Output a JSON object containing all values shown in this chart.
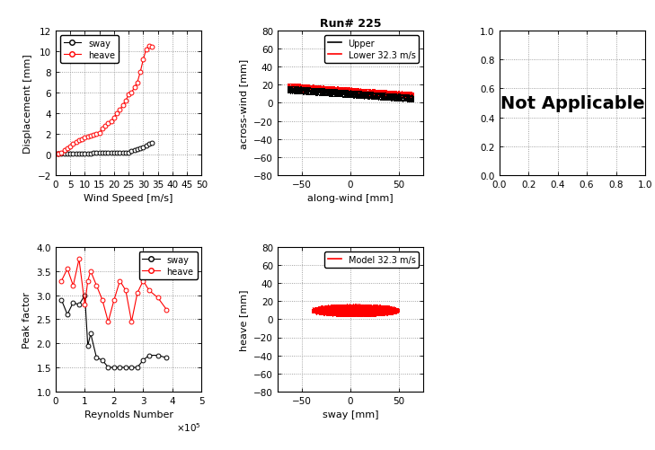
{
  "title": "Run# 225",
  "top_left": {
    "xlabel": "Wind Speed [m/s]",
    "ylabel": "Displacement [mm]",
    "xlim": [
      0,
      50
    ],
    "ylim": [
      -2,
      12
    ],
    "xticks": [
      0,
      5,
      10,
      15,
      20,
      25,
      30,
      35,
      40,
      45,
      50
    ],
    "yticks": [
      -2,
      0,
      2,
      4,
      6,
      8,
      10,
      12
    ],
    "sway_x": [
      0.5,
      1,
      2,
      3,
      4,
      5,
      6,
      7,
      8,
      9,
      10,
      11,
      12,
      13,
      14,
      15,
      16,
      17,
      18,
      19,
      20,
      21,
      22,
      23,
      24,
      25,
      26,
      27,
      28,
      29,
      30,
      31,
      32,
      33
    ],
    "sway_y": [
      0.05,
      0.05,
      0.05,
      0.05,
      0.05,
      0.07,
      0.07,
      0.07,
      0.07,
      0.08,
      0.1,
      0.1,
      0.1,
      0.12,
      0.12,
      0.12,
      0.12,
      0.12,
      0.12,
      0.12,
      0.15,
      0.15,
      0.2,
      0.2,
      0.2,
      0.2,
      0.3,
      0.4,
      0.5,
      0.6,
      0.7,
      0.85,
      1.0,
      1.1
    ],
    "heave_x": [
      0.5,
      1,
      2,
      3,
      4,
      5,
      6,
      7,
      8,
      9,
      10,
      11,
      12,
      13,
      14,
      15,
      16,
      17,
      18,
      19,
      20,
      21,
      22,
      23,
      24,
      25,
      26,
      27,
      28,
      29,
      30,
      31,
      32,
      33
    ],
    "heave_y": [
      0.05,
      0.1,
      0.2,
      0.4,
      0.6,
      0.8,
      1.0,
      1.2,
      1.4,
      1.5,
      1.6,
      1.7,
      1.8,
      1.9,
      2.0,
      2.1,
      2.5,
      2.8,
      3.0,
      3.2,
      3.6,
      4.0,
      4.3,
      4.8,
      5.2,
      5.8,
      6.0,
      6.5,
      7.0,
      8.0,
      9.2,
      10.2,
      10.5,
      10.4
    ],
    "sway_color": "black",
    "heave_color": "red"
  },
  "top_middle": {
    "xlabel": "along-wind [mm]",
    "ylabel": "across-wind [mm]",
    "xlim": [
      -75,
      75
    ],
    "ylim": [
      -80,
      80
    ],
    "xticks": [
      -50,
      0,
      50
    ],
    "yticks": [
      -80,
      -60,
      -40,
      -20,
      0,
      20,
      40,
      60,
      80
    ],
    "upper_color": "black",
    "lower_color": "red",
    "legend_upper": "Upper",
    "legend_lower": "Lower 32.3 m/s"
  },
  "top_right": {
    "text": "Not Applicable",
    "xlim": [
      0,
      1
    ],
    "ylim": [
      0,
      1
    ],
    "xticks": [
      0,
      0.2,
      0.4,
      0.6,
      0.8,
      1.0
    ],
    "yticks": [
      0,
      0.2,
      0.4,
      0.6,
      0.8,
      1.0
    ]
  },
  "bottom_left": {
    "xlabel": "Reynolds Number",
    "ylabel": "Peak factor",
    "xlim": [
      0,
      500000
    ],
    "ylim": [
      1,
      4
    ],
    "xticks": [
      0,
      100000,
      200000,
      300000,
      400000,
      500000
    ],
    "xtick_labels": [
      "0",
      "1",
      "2",
      "3",
      "4",
      "5"
    ],
    "yticks": [
      1.0,
      1.5,
      2.0,
      2.5,
      3.0,
      3.5,
      4.0
    ],
    "sway_x": [
      20000,
      40000,
      60000,
      80000,
      100000,
      110000,
      120000,
      140000,
      160000,
      180000,
      200000,
      220000,
      240000,
      260000,
      280000,
      300000,
      320000,
      350000,
      380000
    ],
    "sway_y": [
      2.9,
      2.6,
      2.85,
      2.8,
      3.0,
      1.95,
      2.2,
      1.7,
      1.65,
      1.5,
      1.5,
      1.5,
      1.5,
      1.5,
      1.5,
      1.65,
      1.75,
      1.75,
      1.7
    ],
    "heave_x": [
      20000,
      40000,
      60000,
      80000,
      100000,
      110000,
      120000,
      140000,
      160000,
      180000,
      200000,
      220000,
      240000,
      260000,
      280000,
      300000,
      320000,
      350000,
      380000
    ],
    "heave_y": [
      3.3,
      3.55,
      3.2,
      3.75,
      2.8,
      3.3,
      3.5,
      3.2,
      2.9,
      2.45,
      2.9,
      3.3,
      3.1,
      2.45,
      3.05,
      3.3,
      3.1,
      2.95,
      2.7
    ],
    "sway_color": "black",
    "heave_color": "red"
  },
  "bottom_middle": {
    "xlabel": "sway [mm]",
    "ylabel": "heave [mm]",
    "xlim": [
      -75,
      75
    ],
    "ylim": [
      -80,
      80
    ],
    "xticks": [
      -50,
      0,
      50
    ],
    "yticks": [
      -80,
      -60,
      -40,
      -20,
      0,
      20,
      40,
      60,
      80
    ],
    "model_color": "red",
    "legend_label": "Model 32.3 m/s"
  }
}
